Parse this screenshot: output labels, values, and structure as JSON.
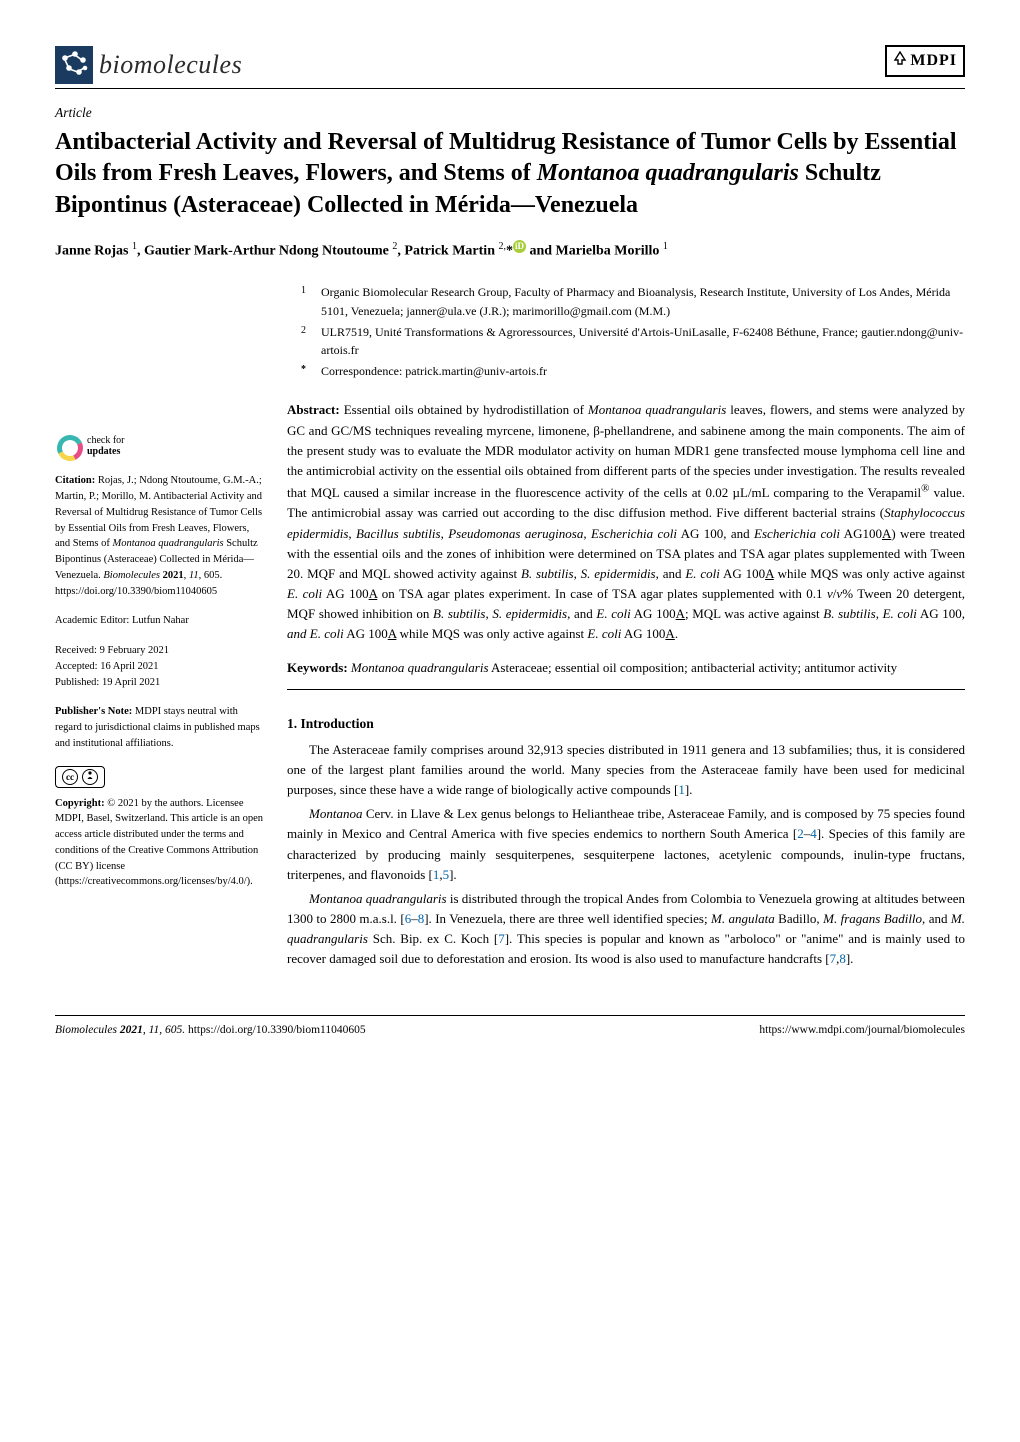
{
  "journal": {
    "name": "biomolecules",
    "publisher": "MDPI",
    "icon_bg": "#1b3a5f",
    "icon_molecule_color": "#ffffff"
  },
  "article": {
    "type": "Article",
    "title_html": "Antibacterial Activity and Reversal of Multidrug Resistance of Tumor Cells by Essential Oils from Fresh Leaves, Flowers, and Stems of <em>Montanoa quadrangularis</em> Schultz Bipontinus (Asteraceae) Collected in Mérida—Venezuela",
    "authors_html": "Janne Rojas <sup>1</sup>, Gautier Mark-Arthur Ndong Ntoutoume <sup>2</sup>, Patrick Martin <sup>2,</sup>*<span class=\"orcid\">iD</span> and Marielba Morillo <sup>1</sup>"
  },
  "affiliations": [
    {
      "num": "1",
      "text": "Organic Biomolecular Research Group, Faculty of Pharmacy and Bioanalysis, Research Institute, University of Los Andes, Mérida 5101, Venezuela; janner@ula.ve (J.R.); marimorillo@gmail.com (M.M.)"
    },
    {
      "num": "2",
      "text": "ULR7519, Unité Transformations & Agroressources, Université d'Artois-UniLasalle, F-62408 Béthune, France; gautier.ndong@univ-artois.fr"
    },
    {
      "num": "*",
      "text": "Correspondence: patrick.martin@univ-artois.fr"
    }
  ],
  "abstract": {
    "label": "Abstract:",
    "text_html": "Essential oils obtained by hydrodistillation of <em>Montanoa quadrangularis</em> leaves, flowers, and stems were analyzed by GC and GC/MS techniques revealing myrcene, limonene, β-phellandrene, and sabinene among the main components. The aim of the present study was to evaluate the MDR modulator activity on human MDR1 gene transfected mouse lymphoma cell line and the antimicrobial activity on the essential oils obtained from different parts of the species under investigation. The results revealed that MQL caused a similar increase in the fluorescence activity of the cells at 0.02 µL/mL comparing to the Verapamil<sup>®</sup> value. The antimicrobial assay was carried out according to the disc diffusion method. Five different bacterial strains (<em>Staphylococcus epidermidis</em>, <em>Bacillus subtilis</em>, <em>Pseudomonas aeruginosa</em>, <em>Escherichia coli</em> AG 100, and <em>Escherichia coli</em> AG100<span class=\"underline\">A</span>) were treated with the essential oils and the zones of inhibition were determined on TSA plates and TSA agar plates supplemented with Tween 20. MQF and MQL showed activity against <em>B. subtilis</em>, <em>S. epidermidis</em>, and <em>E. coli</em> AG 100<span class=\"underline\">A</span> while MQS was only active against <em>E. coli</em> AG 100<span class=\"underline\">A</span> on TSA agar plates experiment. In case of TSA agar plates supplemented with 0.1 <em>v</em>/<em>v</em>% Tween 20 detergent, MQF showed inhibition on <em>B. subtilis</em>, <em>S. epidermidis</em>, and <em>E. coli</em> AG 100<span class=\"underline\">A</span>; MQL was active against <em>B. subtilis</em>, <em>E. coli</em> AG 100, <em>and E. coli</em> AG 100<span class=\"underline\">A</span> while MQS was only active against <em>E. coli</em> AG 100<span class=\"underline\">A</span>."
  },
  "keywords": {
    "label": "Keywords:",
    "text_html": "<em>Montanoa quadrangularis</em> Asteraceae; essential oil composition; antibacterial activity; antitumor activity"
  },
  "sidebar": {
    "check_label1": "check for",
    "check_label2": "updates",
    "citation_label": "Citation:",
    "citation_text_html": "Rojas, J.; Ndong Ntoutoume, G.M.-A.; Martin, P.; Morillo, M. Antibacterial Activity and Reversal of Multidrug Resistance of Tumor Cells by Essential Oils from Fresh Leaves, Flowers, and Stems of <em>Montanoa quadrangularis</em> Schultz Bipontinus (Asteraceae) Collected in Mérida—Venezuela. <em>Biomolecules</em> <strong>2021</strong>, <em>11</em>, 605. https://doi.org/10.3390/biom11040605",
    "editor_label": "Academic Editor:",
    "editor_name": "Lutfun Nahar",
    "received_label": "Received:",
    "received_date": "9 February 2021",
    "accepted_label": "Accepted:",
    "accepted_date": "16 April 2021",
    "published_label": "Published:",
    "published_date": "19 April 2021",
    "pubnote_label": "Publisher's Note:",
    "pubnote_text": "MDPI stays neutral with regard to jurisdictional claims in published maps and institutional affiliations.",
    "copyright_label": "Copyright:",
    "copyright_text": "© 2021 by the authors. Licensee MDPI, Basel, Switzerland. This article is an open access article distributed under the terms and conditions of the Creative Commons Attribution (CC BY) license (https://creativecommons.org/licenses/by/4.0/)."
  },
  "intro": {
    "heading": "1. Introduction",
    "p1_html": "The Asteraceae family comprises around 32,913 species distributed in 1911 genera and 13 subfamilies; thus, it is considered one of the largest plant families around the world. Many species from the Asteraceae family have been used for medicinal purposes, since these have a wide range of biologically active compounds [<span class=\"ref-link\">1</span>].",
    "p2_html": "<em>Montanoa</em> Cerv. in Llave & Lex genus belongs to Heliantheae tribe, Asteraceae Family, and is composed by 75 species found mainly in Mexico and Central America with five species endemics to northern South America [<span class=\"ref-link\">2</span>–<span class=\"ref-link\">4</span>]. Species of this family are characterized by producing mainly sesquiterpenes, sesquiterpene lactones, acetylenic compounds, inulin-type fructans, triterpenes, and flavonoids [<span class=\"ref-link\">1</span>,<span class=\"ref-link\">5</span>].",
    "p3_html": "<em>Montanoa quadrangularis</em> is distributed through the tropical Andes from Colombia to Venezuela growing at altitudes between 1300 to 2800 m.a.s.l. [<span class=\"ref-link\">6</span>–<span class=\"ref-link\">8</span>]. In Venezuela, there are three well identified species; <em>M. angulata</em> Badillo, <em>M. fragans Badillo</em>, and <em>M. quadrangularis</em> Sch. Bip. ex C. Koch [<span class=\"ref-link\">7</span>]. This species is popular and known as \"arboloco\" or \"anime\" and is mainly used to recover damaged soil due to deforestation and erosion. Its wood is also used to manufacture handcrafts [<span class=\"ref-link\">7</span>,<span class=\"ref-link\">8</span>]."
  },
  "footer": {
    "left_html": "<em>Biomolecules</em> <strong>2021</strong>, <em>11</em>, 605. <a href=\"#\">https://doi.org/10.3390/biom11040605</a>",
    "right": "https://www.mdpi.com/journal/biomolecules"
  },
  "colors": {
    "text": "#000000",
    "ref_link": "#0066aa",
    "orcid": "#a6ce39",
    "check_ring_a": "#38b6b0",
    "check_ring_b": "#e94b86",
    "check_ring_c": "#f7d548"
  }
}
